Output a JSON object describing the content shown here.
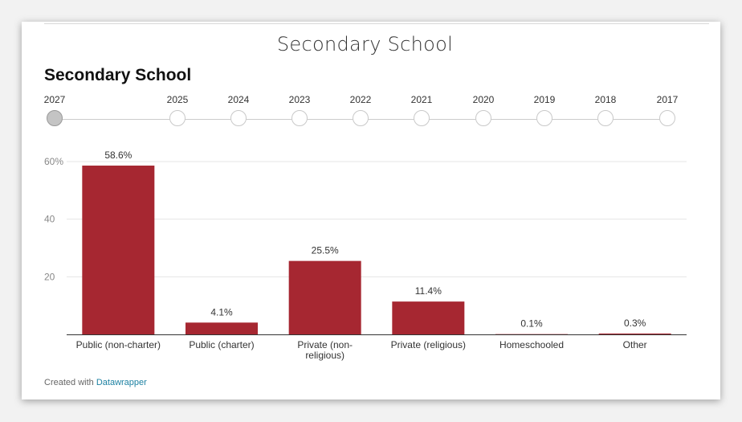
{
  "header": {
    "title": "Secondary School"
  },
  "chart_title": "Secondary School",
  "timeline": {
    "years": [
      "2027",
      "2025",
      "2024",
      "2023",
      "2022",
      "2021",
      "2020",
      "2019",
      "2018",
      "2017"
    ],
    "selected": "2027"
  },
  "credit": {
    "prefix": "Created with",
    "link_text": "Datawrapper"
  },
  "colors": {
    "bar": "#a62731",
    "grid": "#e6e6e6",
    "axis": "#333333"
  },
  "chart_data": {
    "type": "bar",
    "title": "Secondary School",
    "categories": [
      "Public (non-charter)",
      "Public (charter)",
      "Private (non-religious)",
      "Private (religious)",
      "Homeschooled",
      "Other"
    ],
    "values": [
      58.6,
      4.1,
      25.5,
      11.4,
      0.1,
      0.3
    ],
    "value_labels": [
      "58.6%",
      "4.1%",
      "25.5%",
      "11.4%",
      "0.1%",
      "0.3%"
    ],
    "yticks": [
      20,
      40,
      60
    ],
    "ytick_labels": [
      "20",
      "40",
      "60%"
    ],
    "ylim": [
      0,
      60
    ],
    "grid": true,
    "xlabel": "",
    "ylabel": ""
  }
}
